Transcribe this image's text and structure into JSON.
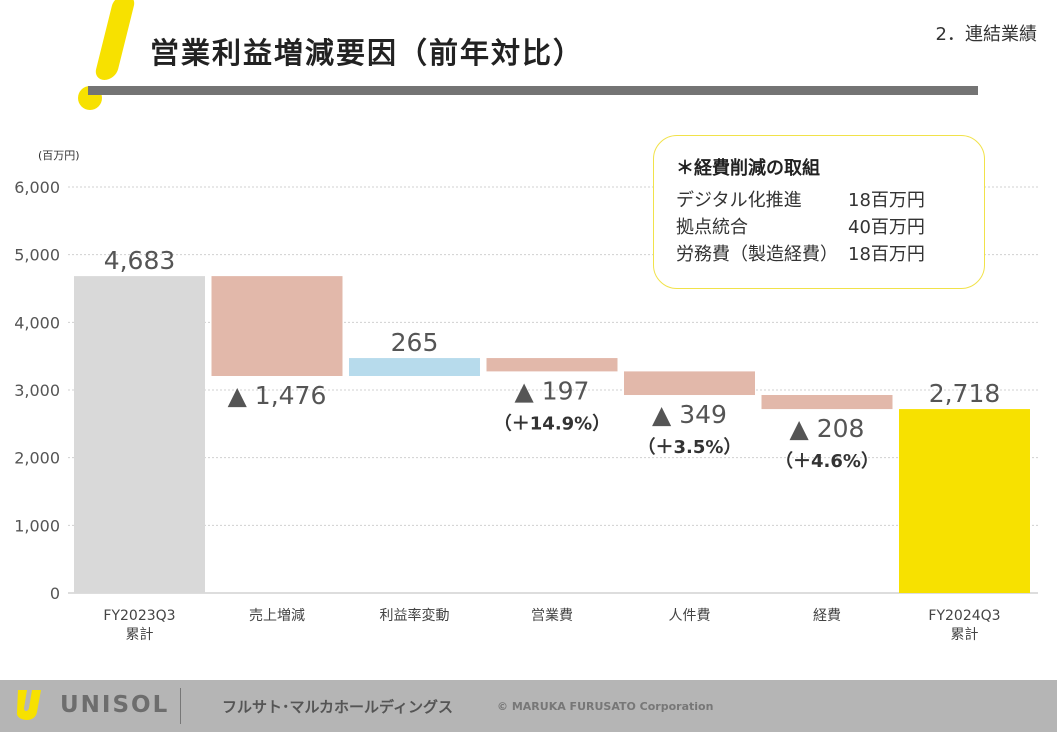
{
  "header": {
    "title": "営業利益増減要因（前年対比）",
    "section": "2．連結業績"
  },
  "note": {
    "title": "＊経費削減の取組",
    "items": [
      {
        "label": "デジタル化推進",
        "value": "18百万円"
      },
      {
        "label": "拠点統合",
        "value": "40百万円"
      },
      {
        "label": "労務費（製造経費）",
        "value": "18百万円"
      }
    ]
  },
  "footer": {
    "brand": "UNISOL",
    "company": "フルサト･マルカホールディングス",
    "copyright": "© MARUKA FURUSATO Corporation"
  },
  "chart_data": {
    "type": "waterfall",
    "ylabel": "(百万円)",
    "ylim": [
      0,
      6000
    ],
    "yticks": [
      "0",
      "1,000",
      "2,000",
      "3,000",
      "4,000",
      "5,000",
      "6,000"
    ],
    "grid": true,
    "categories": [
      "FY2023Q3\n累計",
      "売上増減",
      "利益率変動",
      "営業費",
      "人件費",
      "経費",
      "FY2024Q3\n累計"
    ],
    "steps": [
      {
        "kind": "total",
        "value": 4683,
        "label": "4,683",
        "note": "",
        "color": "#d9d9d9"
      },
      {
        "kind": "delta",
        "value": -1476,
        "label": "▲ 1,476",
        "note": "",
        "color": "#e2b8aa"
      },
      {
        "kind": "delta",
        "value": 265,
        "label": "265",
        "note": "",
        "color": "#b7dbec"
      },
      {
        "kind": "delta",
        "value": -197,
        "label": "▲ 197",
        "note": "（＋14.9%）",
        "color": "#e2b8aa"
      },
      {
        "kind": "delta",
        "value": -349,
        "label": "▲ 349",
        "note": "（＋3.5%）",
        "color": "#e2b8aa"
      },
      {
        "kind": "delta",
        "value": -208,
        "label": "▲ 208",
        "note": "（＋4.6%）",
        "color": "#e2b8aa"
      },
      {
        "kind": "total",
        "value": 2718,
        "label": "2,718",
        "note": "",
        "color": "#f7e100"
      }
    ]
  }
}
